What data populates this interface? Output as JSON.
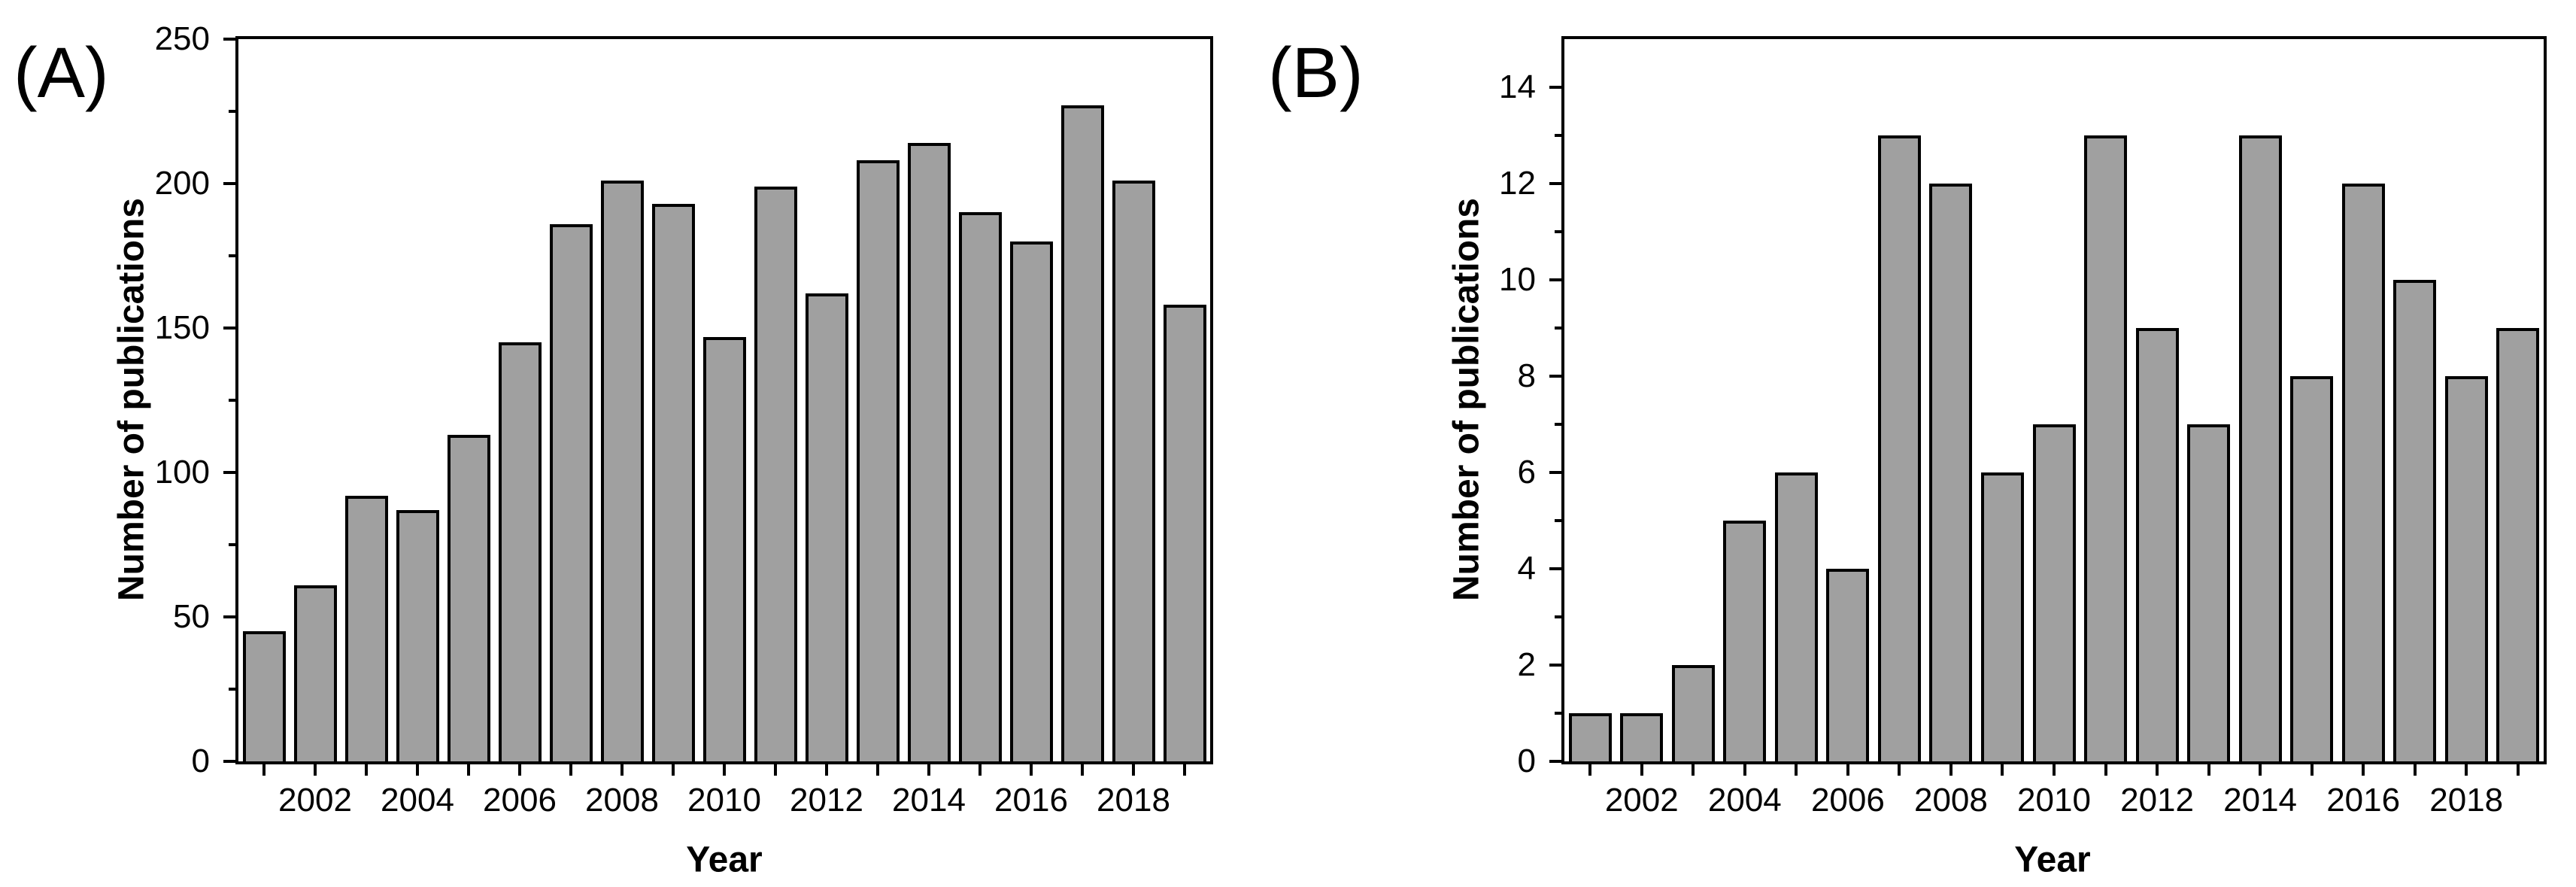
{
  "figure": {
    "background": "#ffffff",
    "text_color": "#000000",
    "bar_fill": "#a0a0a0",
    "bar_border": "#000000",
    "axis_color": "#000000"
  },
  "chart_data": [
    {
      "type": "bar",
      "panel_label": "(A)",
      "xlabel": "Year",
      "ylabel": "Number of publications",
      "x": [
        2001,
        2002,
        2003,
        2004,
        2005,
        2006,
        2007,
        2008,
        2009,
        2010,
        2011,
        2012,
        2013,
        2014,
        2015,
        2016,
        2017,
        2018,
        2019
      ],
      "values": [
        45,
        61,
        92,
        87,
        113,
        145,
        186,
        201,
        193,
        147,
        199,
        162,
        208,
        214,
        190,
        180,
        227,
        201,
        158
      ],
      "ylim": [
        0,
        250
      ],
      "axis_max": 250,
      "ytick_labels": [
        0,
        50,
        100,
        150,
        200,
        250
      ],
      "yminor_ticks": [
        25,
        75,
        125,
        175,
        225
      ],
      "xtick_label_years": [
        2002,
        2004,
        2006,
        2008,
        2010,
        2012,
        2014,
        2016,
        2018
      ],
      "grid": false,
      "legend": null
    },
    {
      "type": "bar",
      "panel_label": "(B)",
      "xlabel": "Year",
      "ylabel": "Number of publications",
      "x": [
        2001,
        2002,
        2003,
        2004,
        2005,
        2006,
        2007,
        2008,
        2009,
        2010,
        2011,
        2012,
        2013,
        2014,
        2015,
        2016,
        2017,
        2018,
        2019
      ],
      "values": [
        1,
        1,
        2,
        5,
        6,
        4,
        13,
        12,
        6,
        7,
        13,
        9,
        7,
        13,
        8,
        12,
        10,
        8,
        9
      ],
      "ylim": [
        0,
        15
      ],
      "axis_max": 15,
      "ytick_labels": [
        0,
        2,
        4,
        6,
        8,
        10,
        12,
        14
      ],
      "yminor_ticks": [
        1,
        3,
        5,
        7,
        9,
        11,
        13
      ],
      "xtick_label_years": [
        2002,
        2004,
        2006,
        2008,
        2010,
        2012,
        2014,
        2016,
        2018
      ],
      "grid": false,
      "legend": null
    }
  ]
}
